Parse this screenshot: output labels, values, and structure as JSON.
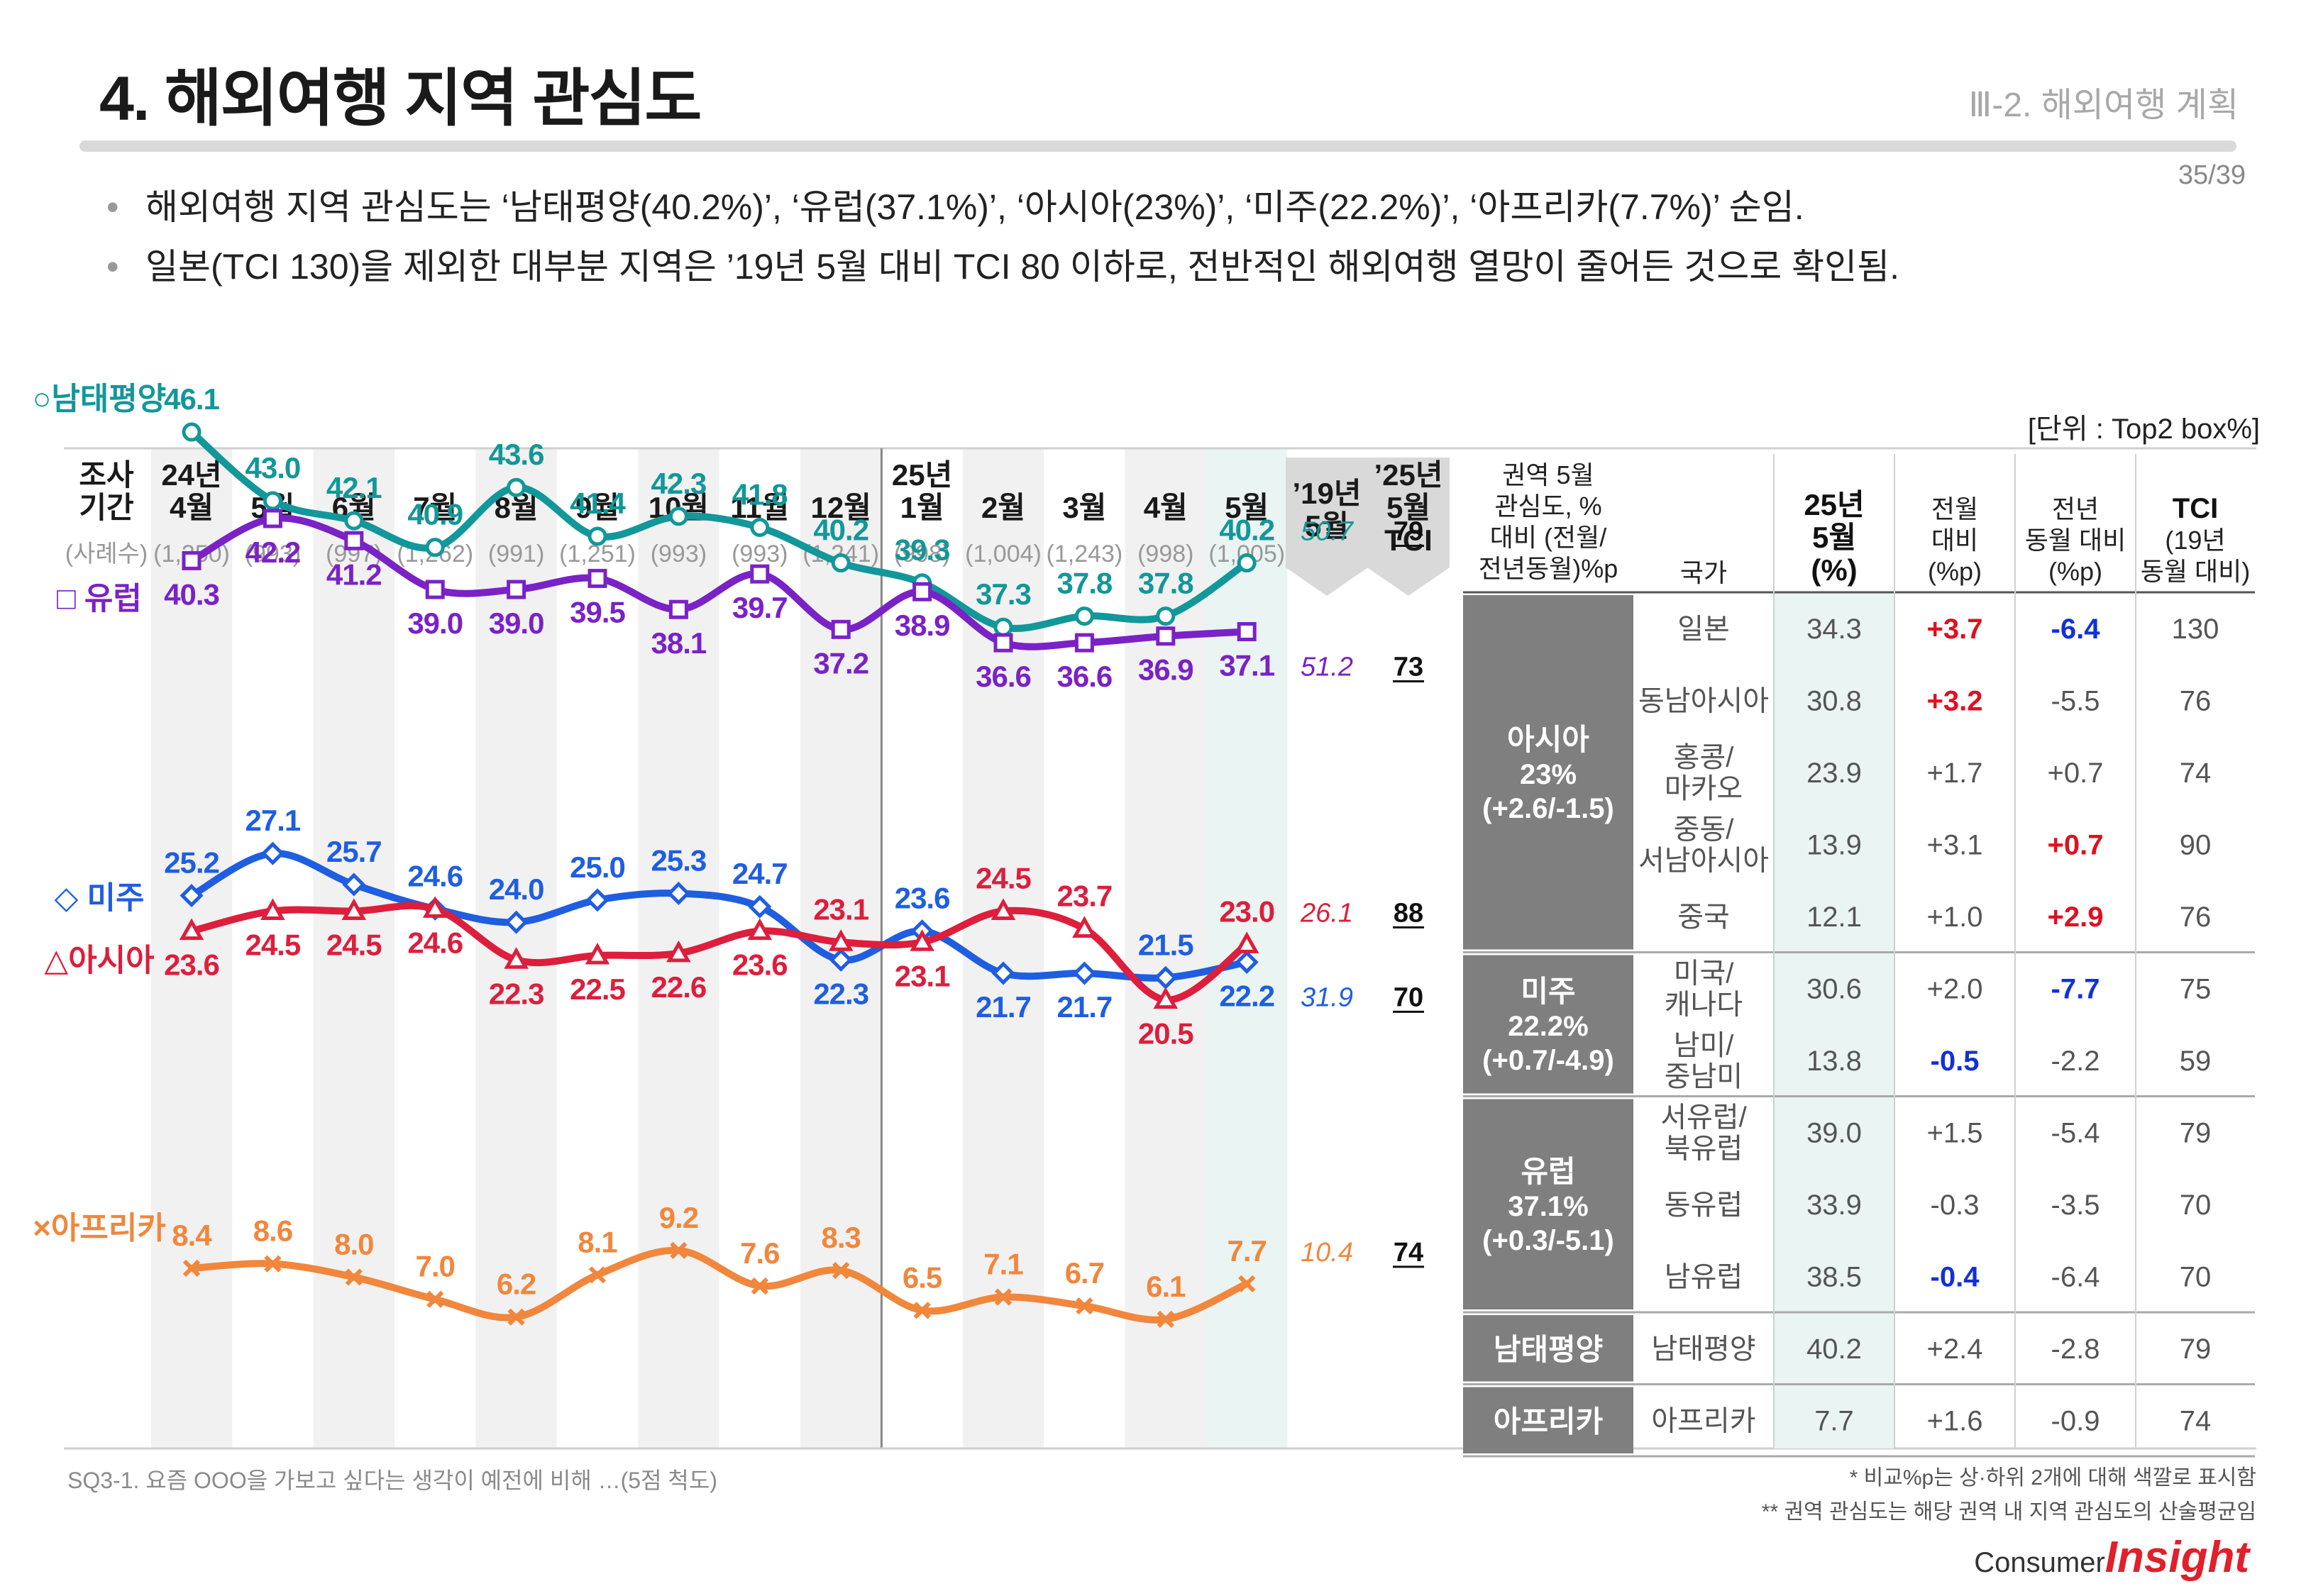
{
  "header": {
    "title": "4. 해외여행 지역 관심도",
    "section": "Ⅲ-2. 해외여행 계획",
    "page": "35/39"
  },
  "bullets": [
    "해외여행 지역 관심도는 ‘남태평양(40.2%)’, ‘유럽(37.1%)’, ‘아시아(23%)’, ‘미주(22.2%)’, ‘아프리카(7.7%)’ 순임.",
    "일본(TCI 130)을 제외한 대부분 지역은 ’19년 5월 대비 TCI 80 이하로, 전반적인 해외여행 열망이 줄어든 것으로 확인됨."
  ],
  "unit_label": "[단위 : Top2 box%]",
  "chart_data": {
    "type": "line",
    "period_label": [
      "조사",
      "기간"
    ],
    "sample_label": "(사례수)",
    "columns": [
      {
        "top": "24년",
        "month": "4월",
        "n": "(1,250)"
      },
      {
        "top": "",
        "month": "5월",
        "n": "(993)"
      },
      {
        "top": "",
        "month": "6월",
        "n": "(997)"
      },
      {
        "top": "",
        "month": "7월",
        "n": "(1,262)"
      },
      {
        "top": "",
        "month": "8월",
        "n": "(991)"
      },
      {
        "top": "",
        "month": "9월",
        "n": "(1,251)"
      },
      {
        "top": "",
        "month": "10월",
        "n": "(993)"
      },
      {
        "top": "",
        "month": "11월",
        "n": "(993)"
      },
      {
        "top": "",
        "month": "12월",
        "n": "(1,241)"
      },
      {
        "top": "25년",
        "month": "1월",
        "n": "(998)"
      },
      {
        "top": "",
        "month": "2월",
        "n": "(1,004)"
      },
      {
        "top": "",
        "month": "3월",
        "n": "(1,243)"
      },
      {
        "top": "",
        "month": "4월",
        "n": "(998)"
      },
      {
        "top": "",
        "month": "5월",
        "n": "(1,005)"
      }
    ],
    "ref_header": [
      "’19년",
      "5월"
    ],
    "tci_header": [
      "’25년",
      "5월",
      "TCI"
    ],
    "series": [
      {
        "name": "○남태평양",
        "color": "#12979a",
        "marker": "circle",
        "labelpos": [
          "above",
          "above",
          "above",
          "above",
          "above",
          "above",
          "above",
          "above",
          "above",
          "above",
          "above",
          "above",
          "above",
          "above"
        ],
        "values": [
          46.1,
          43.0,
          42.1,
          40.9,
          43.6,
          41.4,
          42.3,
          41.8,
          40.2,
          39.3,
          37.3,
          37.8,
          37.8,
          40.2
        ],
        "ref": "50.7",
        "tci": "79"
      },
      {
        "name": "□ 유럽",
        "color": "#7a22c6",
        "marker": "square",
        "labelpos": [
          "below",
          "below",
          "below",
          "below",
          "below",
          "below",
          "below",
          "below",
          "below",
          "below",
          "below",
          "below",
          "below",
          "below"
        ],
        "values": [
          40.3,
          42.2,
          41.2,
          39.0,
          39.0,
          39.5,
          38.1,
          39.7,
          37.2,
          38.9,
          36.6,
          36.6,
          36.9,
          37.1
        ],
        "ref": "51.2",
        "tci": "73"
      },
      {
        "name": "◇ 미주",
        "color": "#1f5ee0",
        "marker": "diamond",
        "labelpos": [
          "above",
          "above",
          "above",
          "above",
          "above",
          "above",
          "above",
          "above",
          "below",
          "above",
          "below",
          "below",
          "above",
          "below"
        ],
        "values": [
          25.2,
          27.1,
          25.7,
          24.6,
          24.0,
          25.0,
          25.3,
          24.7,
          22.3,
          23.6,
          21.7,
          21.7,
          21.5,
          22.2
        ],
        "ref": "31.9",
        "tci": "70"
      },
      {
        "name": "△아시아",
        "color": "#dd1e3c",
        "marker": "triangle",
        "labelpos": [
          "below",
          "below",
          "below",
          "below",
          "below",
          "below",
          "below",
          "below",
          "above",
          "below",
          "above",
          "above",
          "below",
          "above"
        ],
        "values": [
          23.6,
          24.5,
          24.5,
          24.6,
          22.3,
          22.5,
          22.6,
          23.6,
          23.1,
          23.1,
          24.5,
          23.7,
          20.5,
          23.0
        ],
        "ref": "26.1",
        "tci": "88"
      },
      {
        "name": "×아프리카",
        "color": "#f0873c",
        "marker": "x",
        "labelpos": [
          "above",
          "above",
          "above",
          "above",
          "above",
          "above",
          "above",
          "above",
          "above",
          "above",
          "above",
          "above",
          "above",
          "above"
        ],
        "values": [
          8.4,
          8.6,
          8.0,
          7.0,
          6.2,
          8.1,
          9.2,
          7.6,
          8.3,
          6.5,
          7.1,
          6.7,
          6.1,
          7.7
        ],
        "ref": "10.4",
        "tci": "74"
      }
    ]
  },
  "table": {
    "headers": {
      "region": [
        "권역 5월",
        "관심도, %",
        "대비 (전월/",
        "전년동월)%p"
      ],
      "country": [
        "국가"
      ],
      "pct": [
        "25년",
        "5월",
        "(%)"
      ],
      "mom": [
        "전월",
        "대비",
        "(%p)"
      ],
      "yoy": [
        "전년",
        "동월 대비",
        "(%p)"
      ],
      "tci": [
        "TCI",
        "(19년",
        "동월 대비)"
      ]
    },
    "regions": [
      {
        "label": [
          "아시아",
          "23%",
          "(+2.6/-1.5)"
        ],
        "rows": [
          {
            "country": [
              "일본"
            ],
            "pct": "34.3",
            "mom": "+3.7",
            "momc": "red",
            "yoy": "-6.4",
            "yoyc": "blue",
            "tci": "130"
          },
          {
            "country": [
              "동남아시아"
            ],
            "pct": "30.8",
            "mom": "+3.2",
            "momc": "red",
            "yoy": "-5.5",
            "yoyc": "",
            "tci": "76"
          },
          {
            "country": [
              "홍콩/",
              "마카오"
            ],
            "pct": "23.9",
            "mom": "+1.7",
            "momc": "",
            "yoy": "+0.7",
            "yoyc": "",
            "tci": "74"
          },
          {
            "country": [
              "중동/",
              "서남아시아"
            ],
            "pct": "13.9",
            "mom": "+3.1",
            "momc": "",
            "yoy": "+0.7",
            "yoyc": "red",
            "tci": "90"
          },
          {
            "country": [
              "중국"
            ],
            "pct": "12.1",
            "mom": "+1.0",
            "momc": "",
            "yoy": "+2.9",
            "yoyc": "red",
            "tci": "76"
          }
        ]
      },
      {
        "label": [
          "미주",
          "22.2%",
          "(+0.7/-4.9)"
        ],
        "rows": [
          {
            "country": [
              "미국/",
              "캐나다"
            ],
            "pct": "30.6",
            "mom": "+2.0",
            "momc": "",
            "yoy": "-7.7",
            "yoyc": "blue",
            "tci": "75"
          },
          {
            "country": [
              "남미/",
              "중남미"
            ],
            "pct": "13.8",
            "mom": "-0.5",
            "momc": "blue",
            "yoy": "-2.2",
            "yoyc": "",
            "tci": "59"
          }
        ]
      },
      {
        "label": [
          "유럽",
          "37.1%",
          "(+0.3/-5.1)"
        ],
        "rows": [
          {
            "country": [
              "서유럽/",
              "북유럽"
            ],
            "pct": "39.0",
            "mom": "+1.5",
            "momc": "",
            "yoy": "-5.4",
            "yoyc": "",
            "tci": "79"
          },
          {
            "country": [
              "동유럽"
            ],
            "pct": "33.9",
            "mom": "-0.3",
            "momc": "",
            "yoy": "-3.5",
            "yoyc": "",
            "tci": "70"
          },
          {
            "country": [
              "남유럽"
            ],
            "pct": "38.5",
            "mom": "-0.4",
            "momc": "blue",
            "yoy": "-6.4",
            "yoyc": "",
            "tci": "70"
          }
        ]
      },
      {
        "label": [
          "남태평양"
        ],
        "rows": [
          {
            "country": [
              "남태평양"
            ],
            "pct": "40.2",
            "mom": "+2.4",
            "momc": "",
            "yoy": "-2.8",
            "yoyc": "",
            "tci": "79"
          }
        ]
      },
      {
        "label": [
          "아프리카"
        ],
        "rows": [
          {
            "country": [
              "아프리카"
            ],
            "pct": "7.7",
            "mom": "+1.6",
            "momc": "",
            "yoy": "-0.9",
            "yoyc": "",
            "tci": "74"
          }
        ]
      }
    ]
  },
  "footnotes": {
    "question": "SQ3-1. 요즘 OOO을 가보고 싶다는 생각이 예전에 비해 …(5점 척도)",
    "note1": "* 비교%p는 상·하위 2개에 대해 색깔로 표시함",
    "note2": "** 권역 관심도는 해당 권역 내 지역 관심도의 산술평균임"
  },
  "logo": {
    "small": "Consumer",
    "big": "Insight"
  }
}
